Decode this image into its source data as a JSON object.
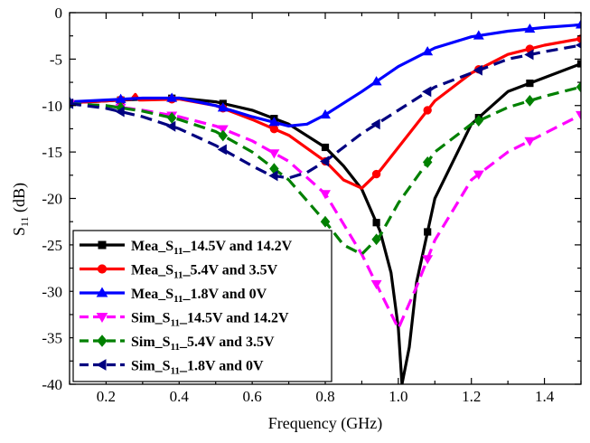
{
  "chart_data": {
    "type": "line",
    "xlabel": "Frequency (GHz)",
    "ylabel": "S11 (dB)",
    "xlim": [
      0.1,
      1.5
    ],
    "ylim": [
      -40,
      0
    ],
    "x_ticks": [
      0.2,
      0.4,
      0.6,
      0.8,
      1.0,
      1.2,
      1.4
    ],
    "x_tick_labels": [
      "0.2",
      "0.4",
      "0.6",
      "0.8",
      "1.0",
      "1.2",
      "1.4"
    ],
    "y_ticks": [
      0,
      -5,
      -10,
      -15,
      -20,
      -25,
      -30,
      -35,
      -40
    ],
    "y_tick_labels": [
      "0",
      "-5",
      "-10",
      "-15",
      "-20",
      "-25",
      "-30",
      "-35",
      "-40"
    ],
    "grid": false,
    "legend_position": "bottom-left",
    "series": [
      {
        "name": "Mea_S11_14.5V and 14.2V",
        "color": "#000000",
        "dash": "solid",
        "marker": "square",
        "x": [
          0.1,
          0.2,
          0.3,
          0.4,
          0.5,
          0.6,
          0.7,
          0.8,
          0.85,
          0.9,
          0.95,
          0.98,
          1.0,
          1.01,
          1.03,
          1.05,
          1.1,
          1.2,
          1.3,
          1.4,
          1.5
        ],
        "y": [
          -9.7,
          -9.5,
          -9.3,
          -9.2,
          -9.6,
          -10.5,
          -12.0,
          -14.5,
          -16.5,
          -19.0,
          -23.5,
          -28.0,
          -34.0,
          -40.0,
          -36.0,
          -29.0,
          -20.0,
          -12.0,
          -8.5,
          -7.0,
          -5.5
        ],
        "marker_x": [
          0.1,
          0.24,
          0.38,
          0.52,
          0.66,
          0.8,
          0.94,
          1.08,
          1.22,
          1.36,
          1.5
        ]
      },
      {
        "name": "Mea_S11_5.4V and 3.5V",
        "color": "#ff0000",
        "dash": "solid",
        "marker": "circle",
        "x": [
          0.1,
          0.2,
          0.27,
          0.28,
          0.29,
          0.3,
          0.4,
          0.5,
          0.6,
          0.7,
          0.8,
          0.85,
          0.9,
          0.95,
          1.0,
          1.1,
          1.2,
          1.3,
          1.4,
          1.5
        ],
        "y": [
          -9.7,
          -9.5,
          -9.3,
          -8.8,
          -9.4,
          -9.4,
          -9.3,
          -10.0,
          -11.5,
          -13.2,
          -16.0,
          -18.0,
          -18.9,
          -17.0,
          -14.5,
          -9.5,
          -6.5,
          -4.5,
          -3.5,
          -2.8
        ],
        "marker_x": [
          0.1,
          0.24,
          0.38,
          0.52,
          0.66,
          0.8,
          0.94,
          1.08,
          1.22,
          1.36,
          1.5
        ]
      },
      {
        "name": "Mea_S11_1.8V and 0V",
        "color": "#0000ff",
        "dash": "solid",
        "marker": "triangle-up",
        "x": [
          0.1,
          0.2,
          0.3,
          0.4,
          0.5,
          0.6,
          0.7,
          0.75,
          0.8,
          0.9,
          1.0,
          1.1,
          1.2,
          1.3,
          1.4,
          1.5
        ],
        "y": [
          -9.6,
          -9.4,
          -9.2,
          -9.2,
          -10.0,
          -11.2,
          -12.2,
          -12.0,
          -11.0,
          -8.5,
          -5.8,
          -3.8,
          -2.6,
          -2.0,
          -1.6,
          -1.3
        ],
        "marker_x": [
          0.1,
          0.24,
          0.38,
          0.52,
          0.66,
          0.8,
          0.94,
          1.08,
          1.22,
          1.36,
          1.5
        ]
      },
      {
        "name": "Sim_S11_14.5V and 14.2V",
        "color": "#ff00ff",
        "dash": "dashed",
        "marker": "triangle-down",
        "x": [
          0.1,
          0.2,
          0.3,
          0.4,
          0.5,
          0.6,
          0.7,
          0.8,
          0.9,
          0.95,
          1.0,
          1.05,
          1.1,
          1.2,
          1.3,
          1.4,
          1.5
        ],
        "y": [
          -9.8,
          -10.0,
          -10.5,
          -11.2,
          -12.2,
          -13.8,
          -16.0,
          -19.5,
          -26.0,
          -30.0,
          -34.0,
          -29.5,
          -24.5,
          -18.0,
          -15.0,
          -13.0,
          -11.0
        ],
        "marker_x": [
          0.1,
          0.24,
          0.38,
          0.52,
          0.66,
          0.8,
          0.94,
          1.08,
          1.22,
          1.36,
          1.5
        ]
      },
      {
        "name": "Sim_S11_5.4V and 3.5V",
        "color": "#008000",
        "dash": "dashed",
        "marker": "diamond",
        "x": [
          0.1,
          0.2,
          0.3,
          0.4,
          0.5,
          0.6,
          0.7,
          0.8,
          0.85,
          0.9,
          0.95,
          1.0,
          1.1,
          1.2,
          1.3,
          1.4,
          1.5
        ],
        "y": [
          -9.8,
          -10.0,
          -10.6,
          -11.5,
          -12.8,
          -15.0,
          -18.0,
          -22.5,
          -25.0,
          -26.0,
          -24.0,
          -20.5,
          -15.0,
          -12.0,
          -10.2,
          -9.0,
          -8.0
        ],
        "marker_x": [
          0.1,
          0.24,
          0.38,
          0.52,
          0.66,
          0.8,
          0.94,
          1.08,
          1.22,
          1.36,
          1.5
        ]
      },
      {
        "name": "Sim_S11_1.8V and 0V",
        "color": "#000080",
        "dash": "dashed",
        "marker": "triangle-left",
        "x": [
          0.1,
          0.2,
          0.3,
          0.4,
          0.5,
          0.6,
          0.65,
          0.7,
          0.75,
          0.8,
          0.9,
          1.0,
          1.1,
          1.2,
          1.3,
          1.4,
          1.5
        ],
        "y": [
          -9.8,
          -10.3,
          -11.2,
          -12.5,
          -14.3,
          -16.5,
          -17.5,
          -17.8,
          -17.2,
          -16.0,
          -13.0,
          -10.5,
          -8.0,
          -6.5,
          -5.0,
          -4.2,
          -3.5
        ],
        "marker_x": [
          0.1,
          0.24,
          0.38,
          0.52,
          0.66,
          0.8,
          0.94,
          1.08,
          1.22,
          1.36,
          1.5
        ]
      }
    ]
  }
}
